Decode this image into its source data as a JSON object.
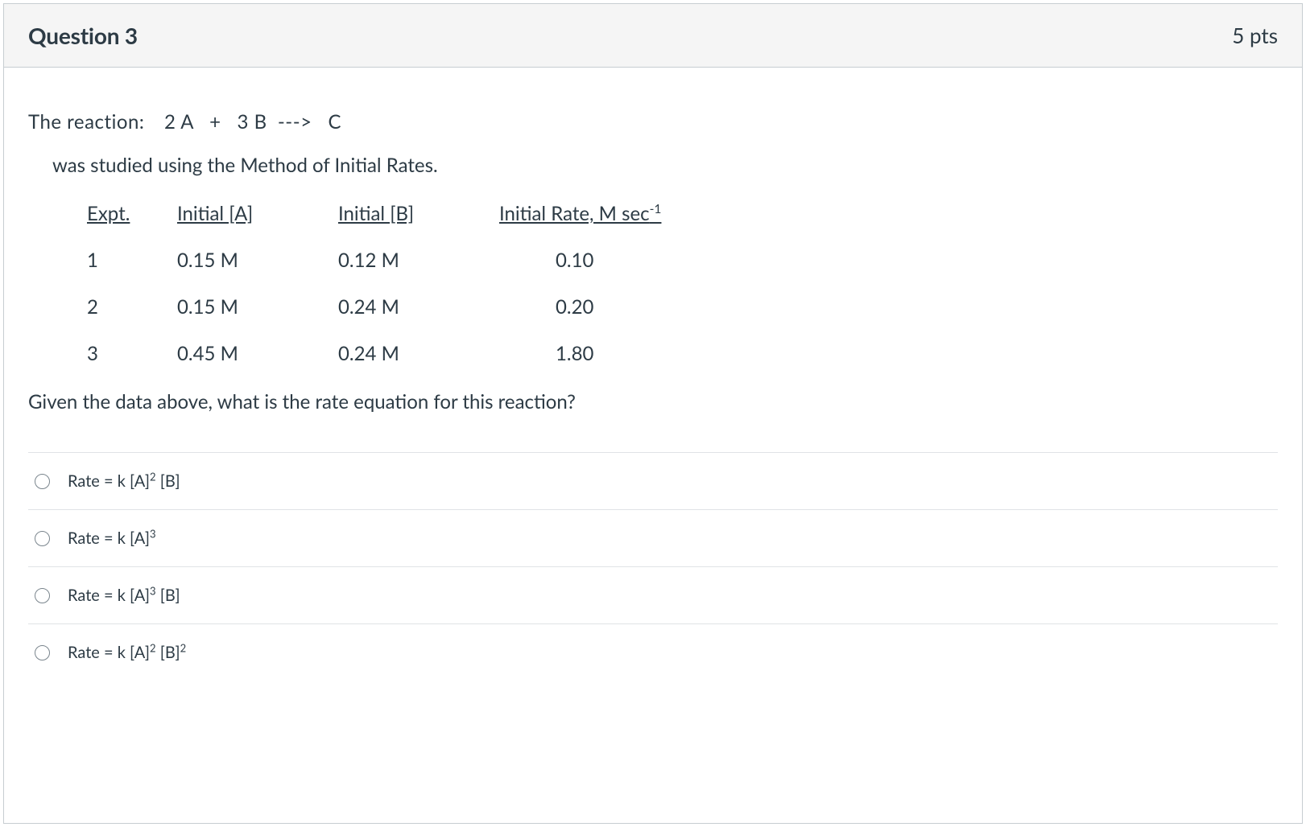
{
  "header": {
    "title": "Question 3",
    "points": "5 pts"
  },
  "question": {
    "reaction_label": "The reaction:",
    "reaction_eq": "2 A   +   3 B  --->   C",
    "subtitle": "was studied using the Method of Initial Rates.",
    "closing": "Given the data above, what is the rate equation for this reaction?"
  },
  "table": {
    "headers": {
      "expt": "Expt.",
      "a": "Initial [A]",
      "b": "Initial [B]",
      "rate_pre": "Initial Rate, M sec",
      "rate_sup": "-1"
    },
    "rows": [
      {
        "expt": "1",
        "a": "0.15 M",
        "b": "0.12 M",
        "rate": "0.10"
      },
      {
        "expt": "2",
        "a": "0.15 M",
        "b": "0.24 M",
        "rate": "0.20"
      },
      {
        "expt": "3",
        "a": "0.45 M",
        "b": "0.24 M",
        "rate": "1.80"
      }
    ]
  },
  "options": [
    {
      "pre": "Rate = k [A]",
      "sup1": "2",
      "mid": " [B]",
      "sup2": ""
    },
    {
      "pre": "Rate = k [A]",
      "sup1": "3",
      "mid": "",
      "sup2": ""
    },
    {
      "pre": "Rate = k [A]",
      "sup1": "3",
      "mid": " [B]",
      "sup2": ""
    },
    {
      "pre": "Rate = k [A]",
      "sup1": "2",
      "mid": " [B]",
      "sup2": "2"
    }
  ],
  "style": {
    "border_color": "#c7cdd1",
    "header_bg": "#f5f5f5",
    "text_color": "#2d3b45",
    "divider_color": "#e0e3e6",
    "radio_border": "#7a858d",
    "title_fontsize": 28,
    "body_fontsize": 24,
    "option_fontsize": 20
  }
}
